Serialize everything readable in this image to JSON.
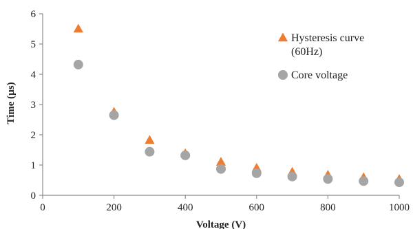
{
  "chart_data": {
    "type": "scatter",
    "xlabel": "Voltage (V)",
    "ylabel": "Time (µs)",
    "xlim": [
      0,
      1000
    ],
    "ylim": [
      0,
      6
    ],
    "x_ticks": [
      0,
      200,
      400,
      600,
      800,
      1000
    ],
    "y_ticks": [
      0,
      1,
      2,
      3,
      4,
      5,
      6
    ],
    "grid": false,
    "legend_position": "top-right",
    "series": [
      {
        "name": "Hysteresis curve (60Hz)",
        "legend_lines": [
          "Hysteresis curve",
          "(60Hz)"
        ],
        "marker": "triangle",
        "color": "#ED7D31",
        "x": [
          100,
          200,
          300,
          400,
          500,
          600,
          700,
          800,
          900,
          1000
        ],
        "y": [
          5.5,
          2.75,
          1.82,
          1.38,
          1.1,
          0.9,
          0.77,
          0.67,
          0.59,
          0.53
        ]
      },
      {
        "name": "Core voltage",
        "legend_lines": [
          "Core voltage"
        ],
        "marker": "circle",
        "color": "#A5A5A5",
        "x": [
          100,
          200,
          300,
          400,
          500,
          600,
          700,
          800,
          900,
          1000
        ],
        "y": [
          4.32,
          2.65,
          1.44,
          1.32,
          0.87,
          0.73,
          0.62,
          0.54,
          0.47,
          0.43
        ]
      }
    ]
  }
}
